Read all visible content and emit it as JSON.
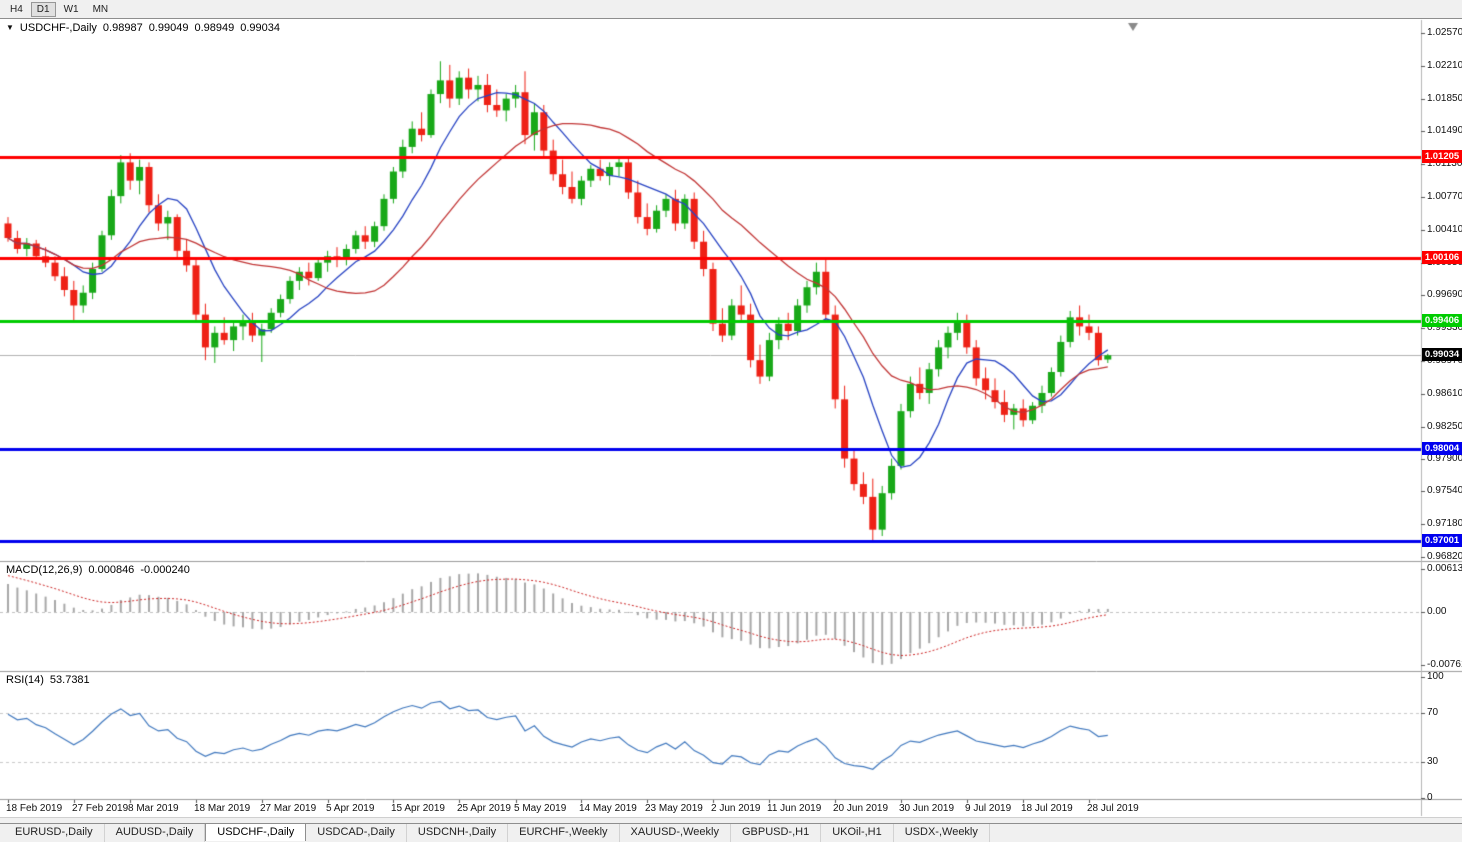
{
  "toolbar": {
    "timeframes": [
      "H4",
      "D1",
      "W1",
      "MN"
    ],
    "active_timeframe": "D1"
  },
  "chart": {
    "symbol_title": "USDCHF-,Daily",
    "ohlc": {
      "open": "0.98987",
      "high": "0.99049",
      "low": "0.98949",
      "close": "0.99034"
    },
    "bid_price": 0.99034,
    "bid_label_bg": "#000000"
  },
  "y_axis": {
    "ticks": [
      "1.02570",
      "1.02210",
      "1.01850",
      "1.01490",
      "1.01130",
      "1.00770",
      "1.00410",
      "1.00050",
      "0.99690",
      "0.99330",
      "0.98970",
      "0.98610",
      "0.98250",
      "0.97900",
      "0.97540",
      "0.97180",
      "0.96820"
    ]
  },
  "x_axis": {
    "labels": [
      {
        "text": "18 Feb 2019",
        "index": 0
      },
      {
        "text": "27 Feb 2019",
        "index": 7
      },
      {
        "text": "8 Mar 2019",
        "index": 13
      },
      {
        "text": "18 Mar 2019",
        "index": 20
      },
      {
        "text": "27 Mar 2019",
        "index": 27
      },
      {
        "text": "5 Apr 2019",
        "index": 34
      },
      {
        "text": "15 Apr 2019",
        "index": 41
      },
      {
        "text": "25 Apr 2019",
        "index": 48
      },
      {
        "text": "5 May 2019",
        "index": 54
      },
      {
        "text": "14 May 2019",
        "index": 61
      },
      {
        "text": "23 May 2019",
        "index": 68
      },
      {
        "text": "2 Jun 2019",
        "index": 75
      },
      {
        "text": "11 Jun 2019",
        "index": 81
      },
      {
        "text": "20 Jun 2019",
        "index": 88
      },
      {
        "text": "30 Jun 2019",
        "index": 95
      },
      {
        "text": "9 Jul 2019",
        "index": 102
      },
      {
        "text": "18 Jul 2019",
        "index": 108
      },
      {
        "text": "28 Jul 2019",
        "index": 115
      }
    ]
  },
  "levels": [
    {
      "price": 1.01205,
      "label": "1.01205",
      "color": "#ff0000",
      "type": "resistance"
    },
    {
      "price": 1.00106,
      "label": "1.00106",
      "color": "#ff0000",
      "type": "resistance"
    },
    {
      "price": 0.99406,
      "label": "0.99406",
      "color": "#00cc00",
      "type": "pivot"
    },
    {
      "price": 0.98004,
      "label": "0.98004",
      "color": "#0000ee",
      "type": "support"
    },
    {
      "price": 0.97001,
      "label": "0.97001",
      "color": "#0000ee",
      "type": "support"
    }
  ],
  "moving_averages": [
    {
      "name": "ma-fast",
      "type": "sma",
      "period": 8,
      "color": "#2743c3"
    },
    {
      "name": "ma-slow",
      "type": "sma",
      "period": 20,
      "color": "#c13535"
    }
  ],
  "indicators": {
    "macd": {
      "label": "MACD(12,26,9)",
      "main_value": "0.000846",
      "signal_value": "-0.000240",
      "fast": 12,
      "slow": 26,
      "signal": 9,
      "ticks": [
        "0.00613",
        "0.00",
        "-0.00761"
      ],
      "histogram_color": "#a8a8a8",
      "signal_color": "#cc2525"
    },
    "rsi": {
      "label": "RSI(14)",
      "value": "53.7381",
      "period": 14,
      "ticks": [
        "100",
        "70",
        "30",
        "0"
      ],
      "levels": [
        70,
        30
      ],
      "color": "#4078be"
    }
  },
  "tabs": {
    "items": [
      {
        "label": "EURUSD-,Daily",
        "active": false
      },
      {
        "label": "AUDUSD-,Daily",
        "active": false
      },
      {
        "label": "USDCHF-,Daily",
        "active": true
      },
      {
        "label": "USDCAD-,Daily",
        "active": false
      },
      {
        "label": "USDCNH-,Daily",
        "active": false
      },
      {
        "label": "EURCHF-,Weekly",
        "active": false
      },
      {
        "label": "XAUUSD-,Weekly",
        "active": false
      },
      {
        "label": "GBPUSD-,H1",
        "active": false
      },
      {
        "label": "UKOil-,H1",
        "active": false
      },
      {
        "label": "USDX-,Weekly",
        "active": false
      }
    ]
  },
  "chart_data": {
    "type": "candlestick",
    "symbol": "USDCHF",
    "timeframe": "Daily",
    "colors": {
      "bull": "#18a818",
      "bear": "#ee2116"
    },
    "candles": [
      [
        1.0048,
        1.0055,
        1.0028,
        1.0032
      ],
      [
        1.0032,
        1.004,
        1.0015,
        1.002
      ],
      [
        1.002,
        1.0032,
        1.0012,
        1.0026
      ],
      [
        1.0026,
        1.003,
        1.0008,
        1.0012
      ],
      [
        1.0012,
        1.0022,
        1.0,
        1.0005
      ],
      [
        1.0005,
        1.0012,
        0.9985,
        0.999
      ],
      [
        0.999,
        1.0,
        0.9968,
        0.9975
      ],
      [
        0.9975,
        0.9985,
        0.9942,
        0.9958
      ],
      [
        0.9958,
        0.998,
        0.995,
        0.9972
      ],
      [
        0.9972,
        1.0005,
        0.9965,
        0.9998
      ],
      [
        0.9998,
        1.004,
        0.9995,
        1.0035
      ],
      [
        1.0035,
        1.0085,
        1.003,
        1.0078
      ],
      [
        1.0078,
        1.0123,
        1.007,
        1.0115
      ],
      [
        1.0115,
        1.0125,
        1.0085,
        1.0095
      ],
      [
        1.0095,
        1.0118,
        1.008,
        1.011
      ],
      [
        1.011,
        1.0115,
        1.006,
        1.0068
      ],
      [
        1.0068,
        1.008,
        1.004,
        1.0048
      ],
      [
        1.0048,
        1.0062,
        1.003,
        1.0055
      ],
      [
        1.0055,
        1.0058,
        1.001,
        1.0018
      ],
      [
        1.0018,
        1.003,
        0.9995,
        1.0002
      ],
      [
        1.0002,
        1.0008,
        0.994,
        0.9948
      ],
      [
        0.9948,
        0.996,
        0.9898,
        0.9912
      ],
      [
        0.9912,
        0.9935,
        0.9895,
        0.9928
      ],
      [
        0.9928,
        0.9945,
        0.9915,
        0.992
      ],
      [
        0.992,
        0.994,
        0.9908,
        0.9935
      ],
      [
        0.9935,
        0.9948,
        0.992,
        0.9942
      ],
      [
        0.9942,
        0.995,
        0.9918,
        0.9925
      ],
      [
        0.9925,
        0.9938,
        0.9896,
        0.9932
      ],
      [
        0.9932,
        0.9955,
        0.9928,
        0.995
      ],
      [
        0.995,
        0.997,
        0.9945,
        0.9965
      ],
      [
        0.9965,
        0.999,
        0.996,
        0.9985
      ],
      [
        0.9985,
        1.0,
        0.9975,
        0.9995
      ],
      [
        0.9995,
        1.0005,
        0.998,
        0.9988
      ],
      [
        0.9988,
        1.001,
        0.9985,
        1.0005
      ],
      [
        1.0005,
        1.0018,
        0.9995,
        1.0012
      ],
      [
        1.0012,
        1.0022,
        1.0,
        1.0008
      ],
      [
        1.0008,
        1.0025,
        1.0002,
        1.002
      ],
      [
        1.002,
        1.004,
        1.0015,
        1.0035
      ],
      [
        1.0035,
        1.0045,
        1.002,
        1.0028
      ],
      [
        1.0028,
        1.005,
        1.0022,
        1.0045
      ],
      [
        1.0045,
        1.008,
        1.004,
        1.0075
      ],
      [
        1.0075,
        1.011,
        1.007,
        1.0105
      ],
      [
        1.0105,
        1.014,
        1.0098,
        1.0132
      ],
      [
        1.0132,
        1.016,
        1.0125,
        1.0152
      ],
      [
        1.0152,
        1.017,
        1.0138,
        1.0145
      ],
      [
        1.0145,
        1.0195,
        1.0142,
        1.019
      ],
      [
        1.019,
        1.0226,
        1.018,
        1.0205
      ],
      [
        1.0205,
        1.0222,
        1.0175,
        1.0185
      ],
      [
        1.0185,
        1.0215,
        1.0178,
        1.0208
      ],
      [
        1.0208,
        1.0218,
        1.0185,
        1.0195
      ],
      [
        1.0195,
        1.021,
        1.0182,
        1.02
      ],
      [
        1.02,
        1.0212,
        1.017,
        1.0178
      ],
      [
        1.0178,
        1.0195,
        1.0165,
        1.0172
      ],
      [
        1.0172,
        1.019,
        1.016,
        1.0185
      ],
      [
        1.0185,
        1.02,
        1.0175,
        1.0192
      ],
      [
        1.0192,
        1.0215,
        1.0135,
        1.0145
      ],
      [
        1.0145,
        1.018,
        1.0128,
        1.017
      ],
      [
        1.017,
        1.0178,
        1.012,
        1.0128
      ],
      [
        1.0128,
        1.014,
        1.0095,
        1.0102
      ],
      [
        1.0102,
        1.0118,
        1.008,
        1.0088
      ],
      [
        1.0088,
        1.0105,
        1.007,
        1.0075
      ],
      [
        1.0075,
        1.01,
        1.0068,
        1.0095
      ],
      [
        1.0095,
        1.0112,
        1.0088,
        1.0108
      ],
      [
        1.0108,
        1.0118,
        1.0095,
        1.01
      ],
      [
        1.01,
        1.0115,
        1.009,
        1.011
      ],
      [
        1.011,
        1.0122,
        1.01,
        1.0115
      ],
      [
        1.0115,
        1.012,
        1.0075,
        1.0082
      ],
      [
        1.0082,
        1.0095,
        1.0048,
        1.0055
      ],
      [
        1.0055,
        1.007,
        1.0035,
        1.0042
      ],
      [
        1.0042,
        1.0068,
        1.0038,
        1.0062
      ],
      [
        1.0062,
        1.008,
        1.0055,
        1.0075
      ],
      [
        1.0075,
        1.0085,
        1.004,
        1.0048
      ],
      [
        1.0048,
        1.008,
        1.0042,
        1.0075
      ],
      [
        1.0075,
        1.0082,
        1.002,
        1.0028
      ],
      [
        1.0028,
        1.004,
        0.999,
        0.9998
      ],
      [
        0.9998,
        1.0005,
        0.993,
        0.9938
      ],
      [
        0.9938,
        0.9955,
        0.9918,
        0.9925
      ],
      [
        0.9925,
        0.9965,
        0.992,
        0.9958
      ],
      [
        0.9958,
        0.998,
        0.994,
        0.9948
      ],
      [
        0.9948,
        0.996,
        0.989,
        0.9898
      ],
      [
        0.9898,
        0.9915,
        0.9872,
        0.988
      ],
      [
        0.988,
        0.9928,
        0.9875,
        0.992
      ],
      [
        0.992,
        0.9945,
        0.991,
        0.9938
      ],
      [
        0.9938,
        0.995,
        0.992,
        0.993
      ],
      [
        0.993,
        0.9965,
        0.9925,
        0.9958
      ],
      [
        0.9958,
        0.9985,
        0.995,
        0.9978
      ],
      [
        0.9978,
        1.0005,
        0.997,
        0.9995
      ],
      [
        0.9995,
        1.0008,
        0.994,
        0.9948
      ],
      [
        0.9948,
        0.9958,
        0.9845,
        0.9855
      ],
      [
        0.9855,
        0.987,
        0.978,
        0.979
      ],
      [
        0.979,
        0.98,
        0.9755,
        0.9762
      ],
      [
        0.9762,
        0.9775,
        0.974,
        0.9748
      ],
      [
        0.9748,
        0.9768,
        0.97,
        0.9712
      ],
      [
        0.9712,
        0.976,
        0.9705,
        0.9752
      ],
      [
        0.9752,
        0.979,
        0.9745,
        0.9782
      ],
      [
        0.9782,
        0.985,
        0.9778,
        0.9842
      ],
      [
        0.9842,
        0.988,
        0.9835,
        0.9872
      ],
      [
        0.9872,
        0.989,
        0.9855,
        0.9862
      ],
      [
        0.9862,
        0.9895,
        0.985,
        0.9888
      ],
      [
        0.9888,
        0.992,
        0.988,
        0.9912
      ],
      [
        0.9912,
        0.9935,
        0.99,
        0.9928
      ],
      [
        0.9928,
        0.995,
        0.992,
        0.9942
      ],
      [
        0.9942,
        0.9948,
        0.9905,
        0.9912
      ],
      [
        0.9912,
        0.992,
        0.987,
        0.9878
      ],
      [
        0.9878,
        0.989,
        0.9855,
        0.9865
      ],
      [
        0.9865,
        0.9878,
        0.9845,
        0.9852
      ],
      [
        0.9852,
        0.9865,
        0.983,
        0.9838
      ],
      [
        0.9838,
        0.985,
        0.9822,
        0.9845
      ],
      [
        0.9845,
        0.9855,
        0.9825,
        0.9832
      ],
      [
        0.9832,
        0.9852,
        0.9828,
        0.9848
      ],
      [
        0.9848,
        0.987,
        0.984,
        0.9862
      ],
      [
        0.9862,
        0.989,
        0.9858,
        0.9885
      ],
      [
        0.9885,
        0.9925,
        0.988,
        0.9918
      ],
      [
        0.9918,
        0.9952,
        0.9912,
        0.9945
      ],
      [
        0.9945,
        0.9958,
        0.9925,
        0.9935
      ],
      [
        0.9935,
        0.9948,
        0.992,
        0.9928
      ],
      [
        0.9928,
        0.9935,
        0.9892,
        0.9898
      ],
      [
        0.98987,
        0.99049,
        0.98949,
        0.99034
      ]
    ]
  }
}
